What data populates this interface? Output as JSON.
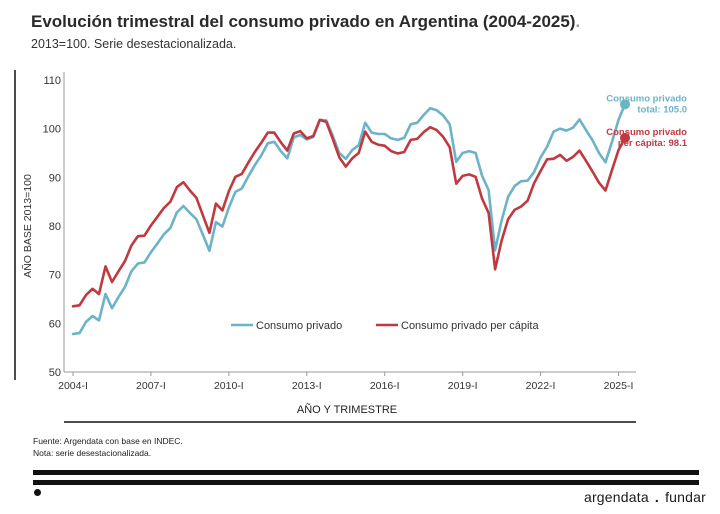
{
  "header": {
    "title": "Evolución trimestral del consumo privado en Argentina (2004-2025)",
    "title_dot": ".",
    "subtitle": "2013=100. Serie desestacionalizada."
  },
  "footer": {
    "source": "Fuente: Argendata con base en INDEC.",
    "note": "Nota: serie desestacionalizada.",
    "brand_left": "argendata",
    "brand_sep": ".",
    "brand_right": "fundar"
  },
  "chart_data": {
    "type": "line",
    "xlabel": "AÑO Y TRIMESTRE",
    "ylabel": "AÑO BASE 2013=100",
    "ylim": [
      50,
      110
    ],
    "yticks": [
      50,
      60,
      70,
      80,
      90,
      100,
      110
    ],
    "xticks": [
      "2004-I",
      "2007-I",
      "2010-I",
      "2013-I",
      "2016-I",
      "2019-I",
      "2022-I",
      "2025-I"
    ],
    "legend_position": "center-bottom",
    "x_start": "2004-I",
    "series": [
      {
        "name": "Consumo privado",
        "color": "#6db3c8",
        "end_label": [
          "Consumo privado",
          "total: 105.0"
        ],
        "values": [
          57.8,
          58.0,
          60.3,
          61.5,
          60.6,
          66.0,
          63.1,
          65.4,
          67.5,
          70.7,
          72.3,
          72.5,
          74.6,
          76.4,
          78.3,
          79.6,
          82.8,
          84.1,
          82.7,
          81.4,
          78.2,
          74.9,
          80.8,
          79.9,
          83.8,
          87.0,
          87.7,
          90.2,
          92.5,
          94.5,
          97.0,
          97.3,
          95.4,
          93.9,
          98.2,
          98.7,
          97.8,
          98.3,
          101.8,
          101.7,
          98.5,
          95.0,
          93.8,
          95.6,
          96.6,
          101.2,
          99.2,
          98.9,
          98.9,
          98.0,
          97.7,
          98.1,
          100.9,
          101.2,
          102.8,
          104.2,
          103.8,
          102.7,
          100.9,
          93.2,
          95.0,
          95.4,
          95.0,
          90.3,
          87.4,
          75.0,
          81.1,
          86.0,
          88.2,
          89.2,
          89.3,
          91.1,
          94.1,
          96.3,
          99.4,
          100.0,
          99.6,
          100.2,
          101.9,
          99.7,
          97.6,
          95.0,
          93.1,
          97.3,
          101.8,
          105.0
        ]
      },
      {
        "name": "Consumo privado per cápita",
        "color": "#c0393f",
        "end_label": [
          "Consumo privado",
          "per cápita: 98.1"
        ],
        "values": [
          63.5,
          63.7,
          65.8,
          67.1,
          66.0,
          71.7,
          68.5,
          70.7,
          72.8,
          76.0,
          77.9,
          78.0,
          80.1,
          81.9,
          83.7,
          85.0,
          88.0,
          89.0,
          87.3,
          85.8,
          82.2,
          78.6,
          84.6,
          83.2,
          87.2,
          90.1,
          90.7,
          93.0,
          95.2,
          97.1,
          99.2,
          99.2,
          97.2,
          95.5,
          99.0,
          99.5,
          98.0,
          98.5,
          101.8,
          101.4,
          97.9,
          94.1,
          92.2,
          93.9,
          95.0,
          99.4,
          97.3,
          96.7,
          96.5,
          95.4,
          94.9,
          95.2,
          97.7,
          97.9,
          99.3,
          100.3,
          99.7,
          98.3,
          96.2,
          88.7,
          90.3,
          90.6,
          90.1,
          85.6,
          82.7,
          71.1,
          77.0,
          81.4,
          83.3,
          84.0,
          85.2,
          88.8,
          91.3,
          93.7,
          93.8,
          94.6,
          93.4,
          94.2,
          95.5,
          93.4,
          91.2,
          88.9,
          87.3,
          91.5,
          95.6,
          98.1
        ]
      }
    ]
  }
}
